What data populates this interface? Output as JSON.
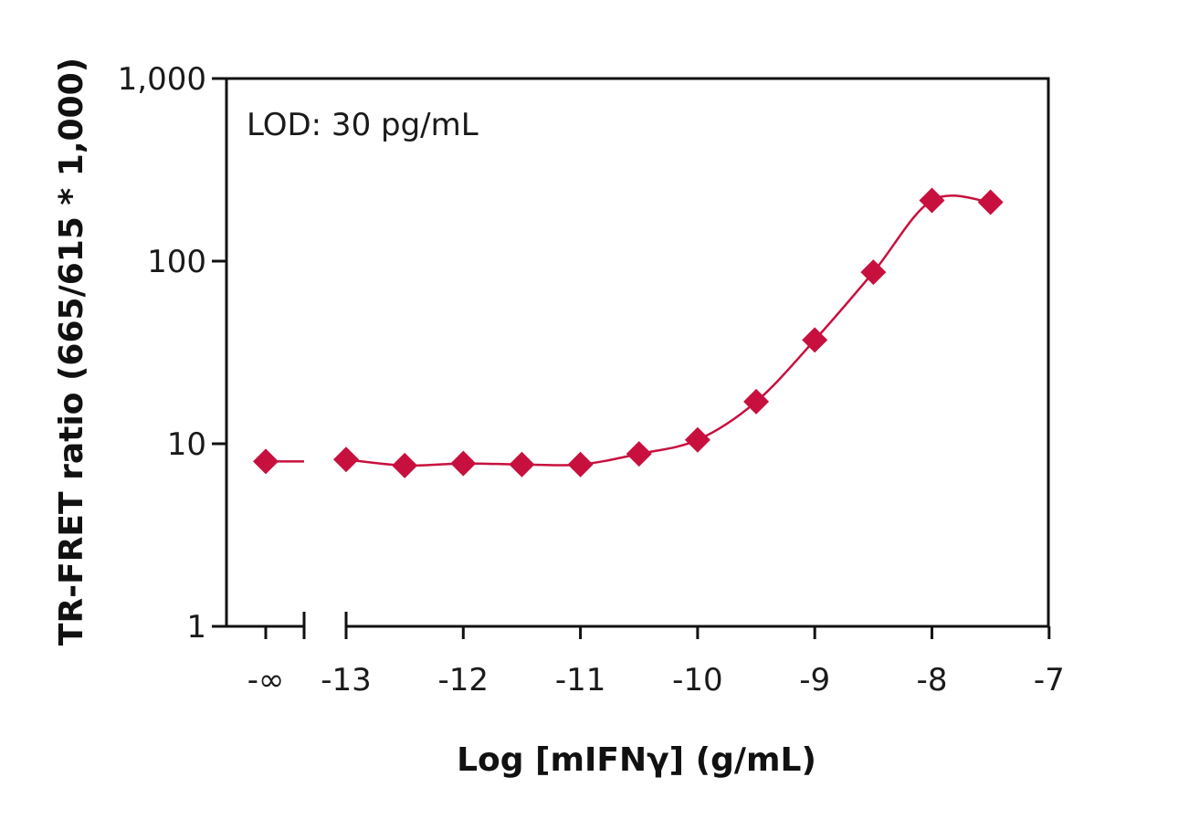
{
  "chart_data": {
    "type": "scatter",
    "annotation": "LOD: 30 pg/mL",
    "xlabel": "Log [mIFNγ] (g/mL)",
    "ylabel": "TR-FRET ratio (665/615 * 1,000)",
    "xlim": [
      -13,
      -7
    ],
    "ylim": [
      1,
      1000
    ],
    "y_scale": "log",
    "grid": false,
    "x_ticks": [
      "-∞",
      "-13",
      "-12",
      "-11",
      "-10",
      "-9",
      "-8",
      "-7"
    ],
    "y_ticks": [
      "1",
      "10",
      "100",
      "1,000"
    ],
    "y_tick_values": [
      1,
      10,
      100,
      1000
    ],
    "marker_color": "#c8103e",
    "baseline": {
      "x": "-∞",
      "y": 8
    },
    "series": [
      {
        "x": [
          -13,
          -12.5,
          -12,
          -11.5,
          -11,
          -10.5,
          -10,
          -9.5,
          -9,
          -8.5,
          -8,
          -7.5
        ],
        "y": [
          8.2,
          7.6,
          7.8,
          7.7,
          7.7,
          8.8,
          10.5,
          17,
          37,
          87,
          215,
          210
        ]
      }
    ]
  }
}
